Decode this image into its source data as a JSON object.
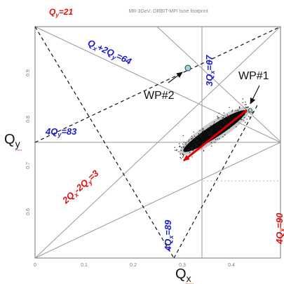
{
  "chart_data": {
    "type": "scatter",
    "title": "MR-3GeV: ORBIT-MPI tune footprint",
    "xlabel": "Qx",
    "ylabel": "Qy",
    "xlim": [
      0,
      0.5
    ],
    "ylim": [
      0.5,
      1.0
    ],
    "x_ticks": [
      "0",
      "0.1",
      "0.2",
      "0.3",
      "0.4"
    ],
    "y_ticks": [
      "0.6",
      "0.7",
      "0.8",
      "0.9"
    ],
    "colors": {
      "resonance_normal": "#1c1ccc",
      "resonance_skew": "#dd1111",
      "footprint": "#111111",
      "arrow": "#e00000",
      "wp_marker": "#9fd6dc"
    },
    "resonance_lines": [
      {
        "id": "qy21",
        "label": "Q_y=21",
        "label_color": "red"
      },
      {
        "id": "qx2qy64",
        "label": "Q_x+2Q_y=64",
        "label_color": "blue"
      },
      {
        "id": "3qx67",
        "label": "3Q_x=67",
        "label_color": "blue"
      },
      {
        "id": "4qy83",
        "label": "4Q_y=83",
        "label_color": "blue"
      },
      {
        "id": "2qx2qy3",
        "label": "2Q_x-2Q_y=3",
        "label_color": "red"
      },
      {
        "id": "4qx89",
        "label": "4Q_x=89",
        "label_color": "blue"
      },
      {
        "id": "4qx90",
        "label": "4Q_x=90",
        "label_color": "red"
      }
    ],
    "points": [
      {
        "name": "WP#1",
        "x": 0.43,
        "y": 0.82
      },
      {
        "name": "WP#2",
        "x": 0.3,
        "y": 0.91
      }
    ],
    "footprint": {
      "from": {
        "x": 0.43,
        "y": 0.82
      },
      "to": {
        "x": 0.27,
        "y": 0.705
      }
    }
  },
  "labels": {
    "title": "MR-3GeV: ORBIT-MPI tune footprint",
    "xlabel": "Q",
    "xlabel_sub": "x",
    "ylabel": "Q",
    "ylabel_sub": "y",
    "wp1": "WP#1",
    "wp2": "WP#2"
  }
}
